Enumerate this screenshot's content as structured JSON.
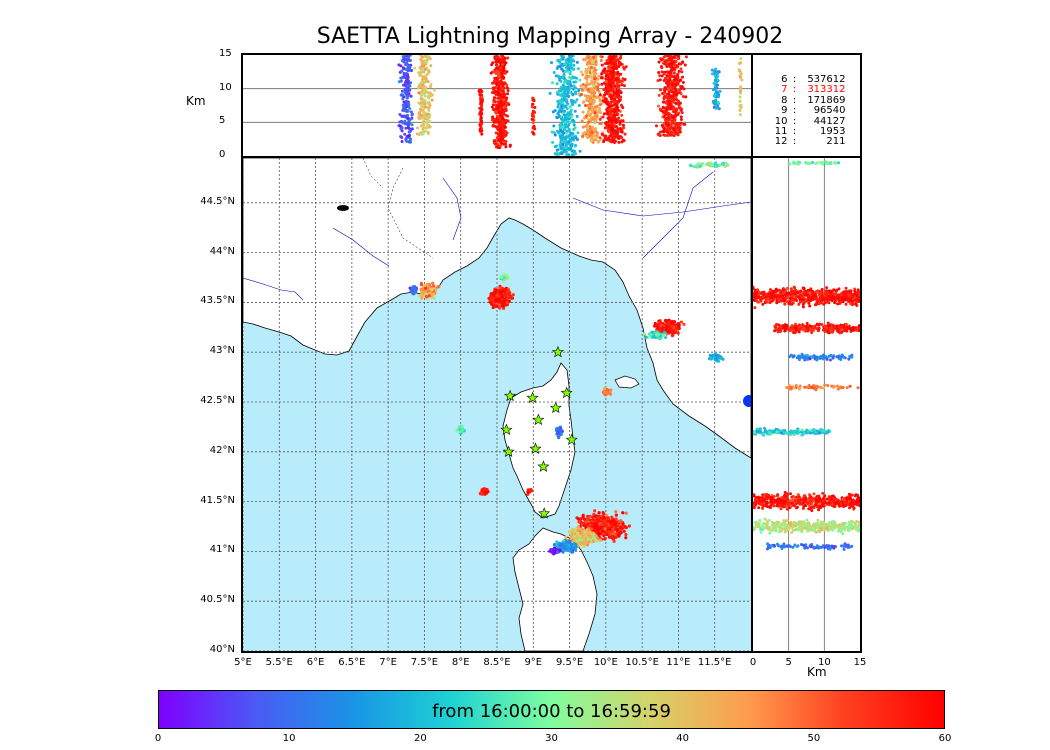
{
  "title": "SAETTA Lightning Mapping Array - 240902",
  "altitude_axis": {
    "label": "Km",
    "ticks": [
      "15",
      "10",
      "5",
      "0"
    ],
    "values": [
      15,
      10,
      5,
      0
    ]
  },
  "side_axis": {
    "label": "Km",
    "ticks": [
      "0",
      "5",
      "10",
      "15"
    ],
    "values": [
      0,
      5,
      10,
      15
    ]
  },
  "latitude_ticks": [
    "44.5°N",
    "44°N",
    "43.5°N",
    "43°N",
    "42.5°N",
    "42°N",
    "41.5°N",
    "41°N",
    "40.5°N",
    "40°N"
  ],
  "latitude_values": [
    44.5,
    44,
    43.5,
    43,
    42.5,
    42,
    41.5,
    41,
    40.5,
    40
  ],
  "longitude_ticks": [
    "5°E",
    "5.5°E",
    "6°E",
    "6.5°E",
    "7°E",
    "7.5°E",
    "8°E",
    "8.5°E",
    "9°E",
    "9.5°E",
    "10°E",
    "10.5°E",
    "11°E",
    "11.5°E"
  ],
  "longitude_values": [
    5,
    5.5,
    6,
    6.5,
    7,
    7.5,
    8,
    8.5,
    9,
    9.5,
    10,
    10.5,
    11,
    11.5
  ],
  "legend": [
    {
      "level": "6",
      "count": "537612",
      "highlight": false
    },
    {
      "level": "7",
      "count": "313312",
      "highlight": true
    },
    {
      "level": "8",
      "count": "171869",
      "highlight": false
    },
    {
      "level": "9",
      "count": "96540",
      "highlight": false
    },
    {
      "level": "10",
      "count": "44127",
      "highlight": false
    },
    {
      "level": "11",
      "count": "1953",
      "highlight": false
    },
    {
      "level": "12",
      "count": "211",
      "highlight": false
    }
  ],
  "legend_separator": ":",
  "colorbar": {
    "label": "from 16:00:00 to 16:59:59",
    "ticks": [
      "0",
      "10",
      "20",
      "30",
      "40",
      "50",
      "60"
    ],
    "values": [
      0,
      10,
      20,
      30,
      40,
      50,
      60
    ],
    "colors": [
      "#7f00ff",
      "#4a5bf5",
      "#1996e6",
      "#1fd3d3",
      "#7ffe9e",
      "#d4d36a",
      "#ff9c4d",
      "#ff3f1f",
      "#ff0000"
    ]
  },
  "colors": {
    "sea": "#b8ecfa",
    "land": "#ffffff",
    "station": "#7fff00",
    "river": "#0000cc",
    "highlight_text": "#ff0000"
  },
  "map_extent": {
    "lon": [
      5,
      12
    ],
    "lat": [
      40,
      44.95
    ]
  },
  "stations": [
    {
      "lon": 9.34,
      "lat": 43.0
    },
    {
      "lon": 8.68,
      "lat": 42.56
    },
    {
      "lon": 8.99,
      "lat": 42.54
    },
    {
      "lon": 9.46,
      "lat": 42.59
    },
    {
      "lon": 9.31,
      "lat": 42.44
    },
    {
      "lon": 9.07,
      "lat": 42.32
    },
    {
      "lon": 8.63,
      "lat": 42.22
    },
    {
      "lon": 9.53,
      "lat": 42.12
    },
    {
      "lon": 9.03,
      "lat": 42.03
    },
    {
      "lon": 8.66,
      "lat": 42.0
    },
    {
      "lon": 9.14,
      "lat": 41.85
    },
    {
      "lon": 9.15,
      "lat": 41.38
    }
  ],
  "lightning_clusters": [
    {
      "lon": 7.55,
      "lat": 43.62,
      "rlon": 0.18,
      "rlat": 0.09,
      "t": 45,
      "n": 110
    },
    {
      "lon": 7.35,
      "lat": 43.62,
      "rlon": 0.06,
      "rlat": 0.06,
      "t": 10,
      "n": 25
    },
    {
      "lon": 8.55,
      "lat": 43.55,
      "rlon": 0.2,
      "rlat": 0.14,
      "t": 58,
      "n": 280
    },
    {
      "lon": 8.6,
      "lat": 43.75,
      "rlon": 0.08,
      "rlat": 0.05,
      "t": 30,
      "n": 30
    },
    {
      "lon": 10.85,
      "lat": 43.25,
      "rlon": 0.25,
      "rlat": 0.09,
      "t": 58,
      "n": 220
    },
    {
      "lon": 10.7,
      "lat": 43.17,
      "rlon": 0.2,
      "rlat": 0.05,
      "t": 25,
      "n": 60
    },
    {
      "lon": 11.52,
      "lat": 42.95,
      "rlon": 0.12,
      "rlat": 0.05,
      "t": 18,
      "n": 35
    },
    {
      "lon": 10.02,
      "lat": 42.6,
      "rlon": 0.07,
      "rlat": 0.05,
      "t": 48,
      "n": 30
    },
    {
      "lon": 8.0,
      "lat": 42.22,
      "rlon": 0.09,
      "rlat": 0.05,
      "t": 28,
      "n": 30
    },
    {
      "lon": 9.35,
      "lat": 42.2,
      "rlon": 0.06,
      "rlat": 0.07,
      "t": 12,
      "n": 40
    },
    {
      "lon": 8.32,
      "lat": 41.6,
      "rlon": 0.08,
      "rlat": 0.05,
      "t": 58,
      "n": 40
    },
    {
      "lon": 8.95,
      "lat": 41.6,
      "rlon": 0.05,
      "rlat": 0.04,
      "t": 58,
      "n": 12
    },
    {
      "lon": 9.95,
      "lat": 41.25,
      "rlon": 0.45,
      "rlat": 0.18,
      "t": 57,
      "n": 450
    },
    {
      "lon": 9.68,
      "lat": 41.15,
      "rlon": 0.3,
      "rlat": 0.12,
      "t": 40,
      "n": 180
    },
    {
      "lon": 9.45,
      "lat": 41.05,
      "rlon": 0.2,
      "rlat": 0.08,
      "t": 15,
      "n": 100
    },
    {
      "lon": 9.3,
      "lat": 41.0,
      "rlon": 0.1,
      "rlat": 0.04,
      "t": 3,
      "n": 30
    },
    {
      "lon": 11.45,
      "lat": 44.88,
      "rlon": 0.4,
      "rlat": 0.03,
      "t": 28,
      "n": 40
    }
  ],
  "altitude_clusters": [
    {
      "lon": 7.25,
      "alt": 7.5,
      "rlon": 0.12,
      "alt_min": 2,
      "alt_max": 15,
      "t": 8,
      "n": 200
    },
    {
      "lon": 7.5,
      "alt": 7.5,
      "rlon": 0.15,
      "alt_min": 3,
      "alt_max": 15,
      "t": 40,
      "n": 200
    },
    {
      "lon": 8.28,
      "alt": 8.0,
      "rlon": 0.03,
      "alt_min": 3,
      "alt_max": 10,
      "t": 58,
      "n": 60
    },
    {
      "lon": 8.55,
      "alt": 8.0,
      "rlon": 0.15,
      "alt_min": 1,
      "alt_max": 15,
      "t": 58,
      "n": 400
    },
    {
      "lon": 9.0,
      "alt": 5.0,
      "rlon": 0.03,
      "alt_min": 3,
      "alt_max": 9,
      "t": 58,
      "n": 30
    },
    {
      "lon": 9.45,
      "alt": 7.0,
      "rlon": 0.25,
      "alt_min": 0,
      "alt_max": 15,
      "t": 20,
      "n": 400
    },
    {
      "lon": 9.8,
      "alt": 8.0,
      "rlon": 0.2,
      "alt_min": 2,
      "alt_max": 15,
      "t": 45,
      "n": 300
    },
    {
      "lon": 10.1,
      "alt": 8.0,
      "rlon": 0.2,
      "alt_min": 2,
      "alt_max": 15,
      "t": 58,
      "n": 500
    },
    {
      "lon": 10.9,
      "alt": 8.5,
      "rlon": 0.22,
      "alt_min": 3,
      "alt_max": 15,
      "t": 58,
      "n": 450
    },
    {
      "lon": 11.52,
      "alt": 9.0,
      "rlon": 0.07,
      "alt_min": 7,
      "alt_max": 13,
      "t": 18,
      "n": 60
    },
    {
      "lon": 11.85,
      "alt": 10.0,
      "rlon": 0.04,
      "alt_min": 6,
      "alt_max": 15,
      "t": 40,
      "n": 25
    }
  ],
  "side_clusters": [
    {
      "lat": 43.56,
      "alt": 9.5,
      "rlat": 0.12,
      "alt_min": 0,
      "alt_max": 15,
      "t": 58,
      "n": 600
    },
    {
      "lat": 43.24,
      "alt": 9.5,
      "rlat": 0.06,
      "alt_min": 3,
      "alt_max": 15,
      "t": 58,
      "n": 250
    },
    {
      "lat": 42.95,
      "alt": 9.5,
      "rlat": 0.04,
      "alt_min": 5,
      "alt_max": 14,
      "t": 12,
      "n": 80
    },
    {
      "lat": 42.65,
      "alt": 9.5,
      "rlat": 0.03,
      "alt_min": 4,
      "alt_max": 15,
      "t": 48,
      "n": 60
    },
    {
      "lat": 42.2,
      "alt": 5.5,
      "rlat": 0.04,
      "alt_min": 0,
      "alt_max": 11,
      "t": 22,
      "n": 150
    },
    {
      "lat": 41.5,
      "alt": 8.0,
      "rlat": 0.1,
      "alt_min": 0,
      "alt_max": 15,
      "t": 58,
      "n": 500
    },
    {
      "lat": 41.25,
      "alt": 8.0,
      "rlat": 0.08,
      "alt_min": 0,
      "alt_max": 15,
      "t": 35,
      "n": 350
    },
    {
      "lat": 41.05,
      "alt": 8.0,
      "rlat": 0.04,
      "alt_min": 2,
      "alt_max": 14,
      "t": 10,
      "n": 80
    },
    {
      "lat": 44.9,
      "alt": 9.0,
      "rlat": 0.02,
      "alt_min": 5,
      "alt_max": 12,
      "t": 30,
      "n": 40
    }
  ]
}
